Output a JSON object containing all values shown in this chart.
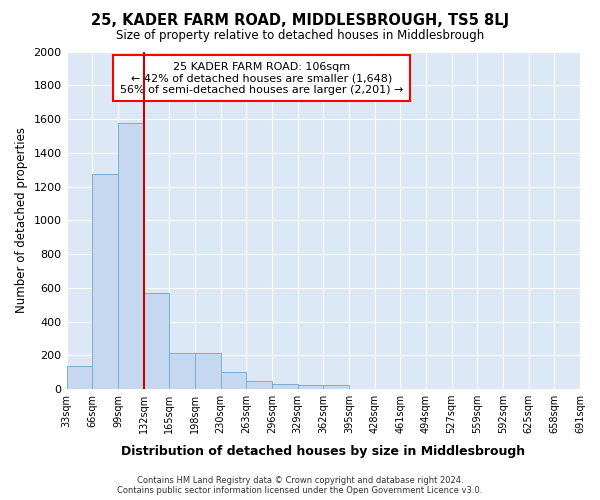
{
  "title": "25, KADER FARM ROAD, MIDDLESBROUGH, TS5 8LJ",
  "subtitle": "Size of property relative to detached houses in Middlesbrough",
  "xlabel": "Distribution of detached houses by size in Middlesbrough",
  "ylabel": "Number of detached properties",
  "bar_values": [
    135,
    1275,
    1575,
    570,
    215,
    215,
    100,
    50,
    30,
    25,
    25,
    0,
    0,
    0,
    0,
    0,
    0,
    0,
    0,
    0
  ],
  "categories": [
    "33sqm",
    "66sqm",
    "99sqm",
    "132sqm",
    "165sqm",
    "198sqm",
    "230sqm",
    "263sqm",
    "296sqm",
    "329sqm",
    "362sqm",
    "395sqm",
    "428sqm",
    "461sqm",
    "494sqm",
    "527sqm",
    "559sqm",
    "592sqm",
    "625sqm",
    "658sqm",
    "691sqm"
  ],
  "bar_color": "#c5d8f0",
  "bar_edge_color": "#7aadd4",
  "red_line_x": 3.0,
  "annotation_title": "25 KADER FARM ROAD: 106sqm",
  "annotation_line1": "← 42% of detached houses are smaller (1,648)",
  "annotation_line2": "56% of semi-detached houses are larger (2,201) →",
  "footer1": "Contains HM Land Registry data © Crown copyright and database right 2024.",
  "footer2": "Contains public sector information licensed under the Open Government Licence v3.0.",
  "fig_bg_color": "#ffffff",
  "plot_bg_color": "#dce8f5",
  "ylim": [
    0,
    2000
  ],
  "yticks": [
    0,
    200,
    400,
    600,
    800,
    1000,
    1200,
    1400,
    1600,
    1800,
    2000
  ]
}
